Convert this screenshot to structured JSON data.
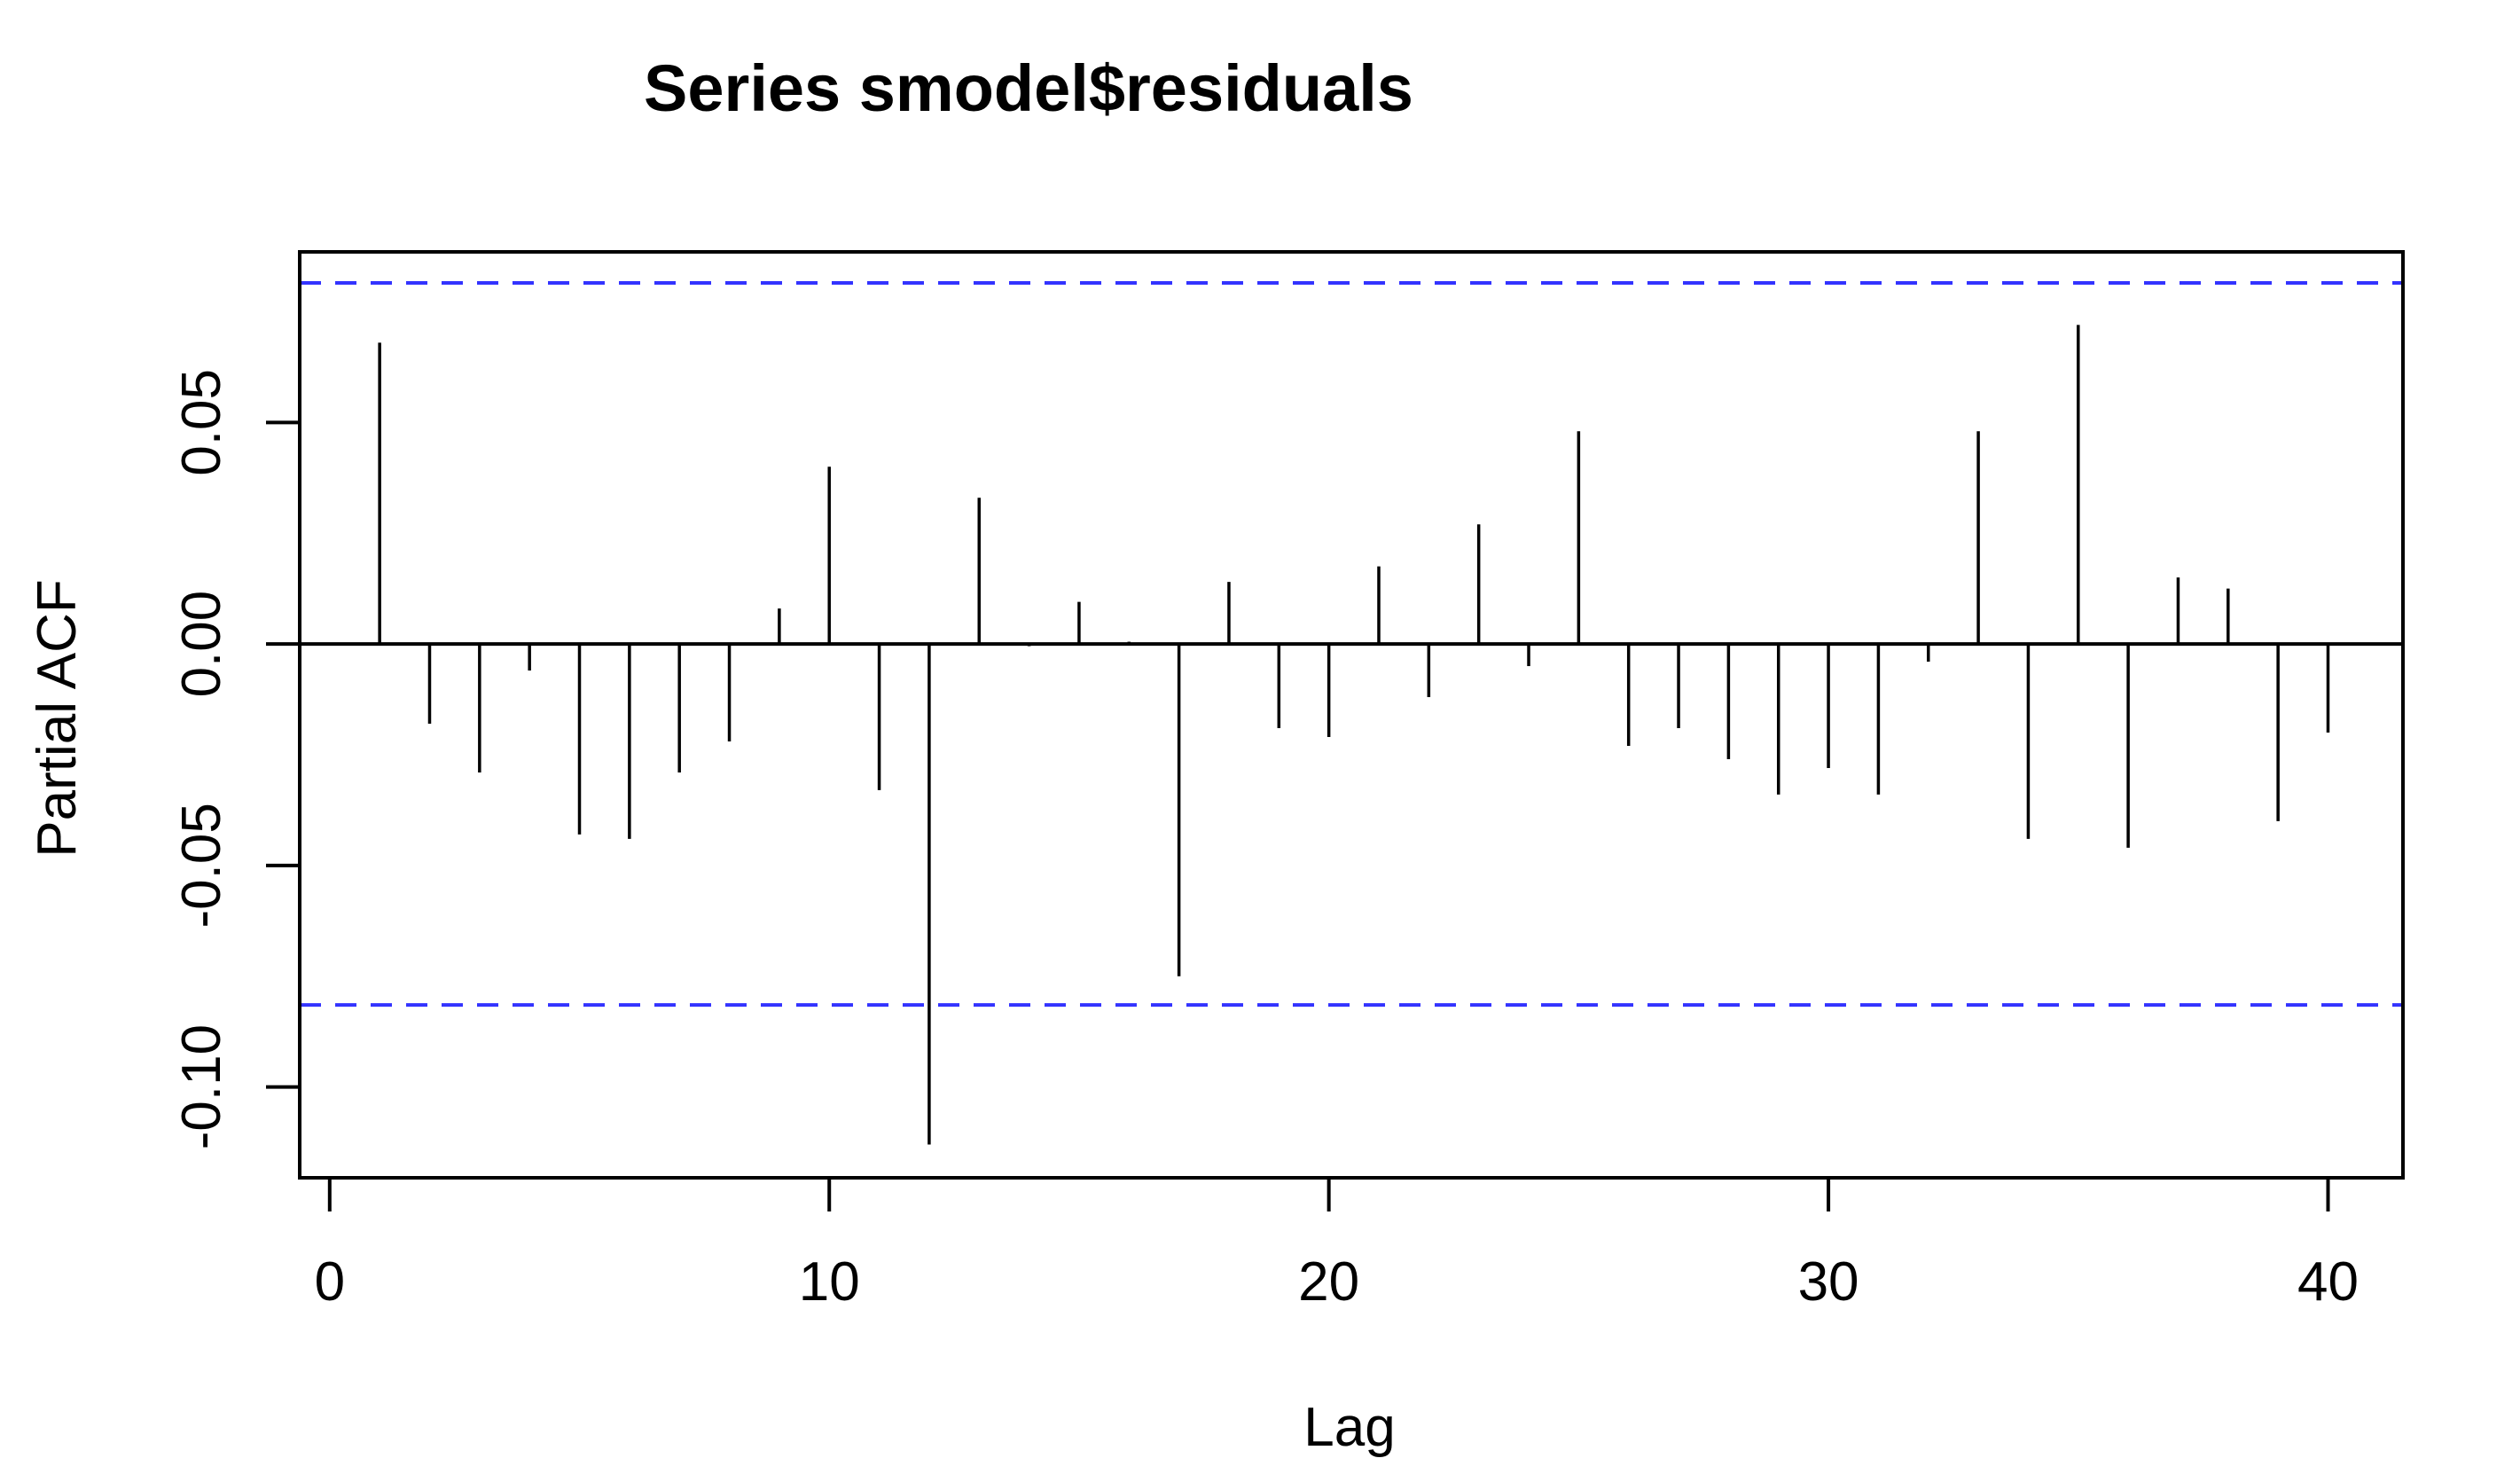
{
  "chart_data": {
    "type": "bar",
    "title": "Series  smodel$residuals",
    "xlabel": "Lag",
    "ylabel": "Partial ACF",
    "xlim": [
      -0.6,
      41.5
    ],
    "ylim": [
      -0.1205,
      0.0885
    ],
    "xticks": [
      0,
      10,
      20,
      30,
      40
    ],
    "xtick_labels": [
      "0",
      "10",
      "20",
      "30",
      "40"
    ],
    "yticks": [
      -0.1,
      -0.05,
      0.0,
      0.05
    ],
    "ytick_labels": [
      "-0.10",
      "-0.05",
      "0.00",
      "0.05"
    ],
    "confidence_bounds": [
      0.0815,
      -0.0815
    ],
    "bound_color": "#3333ff",
    "bar_color": "#000000",
    "grid": false,
    "lags": [
      1,
      2,
      3,
      4,
      5,
      6,
      7,
      8,
      9,
      10,
      11,
      12,
      13,
      14,
      15,
      16,
      17,
      18,
      19,
      20,
      21,
      22,
      23,
      24,
      25,
      26,
      27,
      28,
      29,
      30,
      31,
      32,
      33,
      34,
      35,
      36,
      37,
      38,
      39,
      40
    ],
    "values": [
      0.068,
      -0.018,
      -0.029,
      -0.006,
      -0.043,
      -0.044,
      -0.029,
      -0.022,
      0.008,
      0.04,
      -0.033,
      -0.113,
      0.033,
      -0.0005,
      0.0095,
      0.0005,
      -0.075,
      0.014,
      -0.019,
      -0.021,
      0.0175,
      -0.012,
      0.027,
      -0.005,
      0.048,
      -0.023,
      -0.019,
      -0.026,
      -0.034,
      -0.028,
      -0.034,
      -0.004,
      0.048,
      -0.044,
      0.072,
      -0.046,
      0.015,
      0.0125,
      -0.04,
      -0.02
    ]
  }
}
